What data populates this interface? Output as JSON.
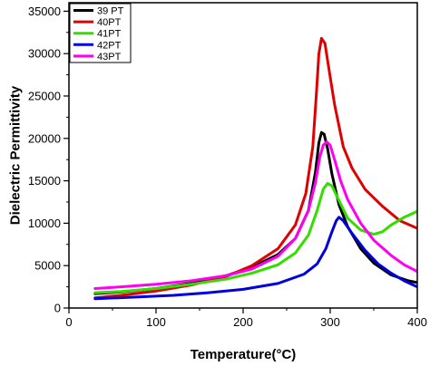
{
  "chart_data": {
    "type": "line",
    "xlabel": "Temperature(°C)",
    "ylabel": "Dielectric Permittivity",
    "xlim": [
      0,
      400
    ],
    "ylim": [
      0,
      36000
    ],
    "xticks": [
      0,
      100,
      200,
      300,
      400
    ],
    "yticks": [
      0,
      5000,
      10000,
      15000,
      20000,
      25000,
      30000,
      35000
    ],
    "grid": false,
    "legend_position": "top-left",
    "series": [
      {
        "name": "39 PT",
        "color": "#000000",
        "points": [
          [
            30,
            1700
          ],
          [
            60,
            1900
          ],
          [
            100,
            2300
          ],
          [
            140,
            2900
          ],
          [
            180,
            3800
          ],
          [
            210,
            4800
          ],
          [
            240,
            6300
          ],
          [
            260,
            8200
          ],
          [
            275,
            11500
          ],
          [
            283,
            16000
          ],
          [
            287,
            19500
          ],
          [
            290,
            20700
          ],
          [
            293,
            20500
          ],
          [
            297,
            18800
          ],
          [
            302,
            15800
          ],
          [
            310,
            12200
          ],
          [
            320,
            9600
          ],
          [
            335,
            7000
          ],
          [
            350,
            5300
          ],
          [
            370,
            3900
          ],
          [
            390,
            3200
          ],
          [
            400,
            3000
          ]
        ]
      },
      {
        "name": "40PT",
        "color": "#e00000",
        "points": [
          [
            30,
            1200
          ],
          [
            60,
            1500
          ],
          [
            100,
            2000
          ],
          [
            140,
            2700
          ],
          [
            180,
            3700
          ],
          [
            210,
            5000
          ],
          [
            240,
            7000
          ],
          [
            260,
            9800
          ],
          [
            272,
            13500
          ],
          [
            280,
            19000
          ],
          [
            284,
            25000
          ],
          [
            287,
            30000
          ],
          [
            290,
            31800
          ],
          [
            294,
            31200
          ],
          [
            298,
            28500
          ],
          [
            305,
            24000
          ],
          [
            315,
            19000
          ],
          [
            325,
            16500
          ],
          [
            340,
            14000
          ],
          [
            360,
            12000
          ],
          [
            380,
            10300
          ],
          [
            400,
            9400
          ]
        ]
      },
      {
        "name": "41PT",
        "color": "#33dd00",
        "points": [
          [
            30,
            1800
          ],
          [
            60,
            1950
          ],
          [
            100,
            2300
          ],
          [
            140,
            2800
          ],
          [
            180,
            3400
          ],
          [
            210,
            4100
          ],
          [
            240,
            5100
          ],
          [
            260,
            6500
          ],
          [
            275,
            8600
          ],
          [
            285,
            11500
          ],
          [
            292,
            14000
          ],
          [
            297,
            14700
          ],
          [
            302,
            14400
          ],
          [
            310,
            12700
          ],
          [
            320,
            10600
          ],
          [
            335,
            9200
          ],
          [
            350,
            8700
          ],
          [
            360,
            9000
          ],
          [
            370,
            9800
          ],
          [
            385,
            10700
          ],
          [
            400,
            11400
          ]
        ]
      },
      {
        "name": "42PT",
        "color": "#0000dd",
        "points": [
          [
            30,
            1100
          ],
          [
            80,
            1300
          ],
          [
            120,
            1500
          ],
          [
            160,
            1800
          ],
          [
            200,
            2200
          ],
          [
            240,
            2900
          ],
          [
            270,
            4000
          ],
          [
            285,
            5200
          ],
          [
            295,
            7000
          ],
          [
            302,
            9000
          ],
          [
            307,
            10300
          ],
          [
            310,
            10700
          ],
          [
            315,
            10300
          ],
          [
            325,
            8800
          ],
          [
            340,
            6800
          ],
          [
            355,
            5200
          ],
          [
            370,
            4100
          ],
          [
            385,
            3200
          ],
          [
            400,
            2500
          ]
        ]
      },
      {
        "name": "43PT",
        "color": "#ff00ee",
        "points": [
          [
            30,
            2300
          ],
          [
            60,
            2500
          ],
          [
            100,
            2800
          ],
          [
            140,
            3200
          ],
          [
            180,
            3800
          ],
          [
            210,
            4600
          ],
          [
            240,
            6100
          ],
          [
            260,
            8200
          ],
          [
            275,
            11500
          ],
          [
            283,
            14800
          ],
          [
            288,
            17800
          ],
          [
            292,
            19200
          ],
          [
            296,
            19600
          ],
          [
            300,
            19200
          ],
          [
            305,
            17500
          ],
          [
            312,
            15000
          ],
          [
            320,
            12800
          ],
          [
            335,
            10000
          ],
          [
            350,
            8000
          ],
          [
            370,
            6200
          ],
          [
            385,
            5100
          ],
          [
            400,
            4300
          ]
        ]
      }
    ]
  }
}
